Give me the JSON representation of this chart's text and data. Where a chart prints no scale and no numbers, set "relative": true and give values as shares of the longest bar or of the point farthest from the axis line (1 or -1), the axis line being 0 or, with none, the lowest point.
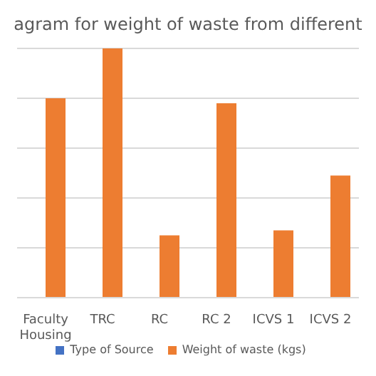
{
  "chart_data": {
    "type": "bar",
    "title": "agram for weight of waste from different",
    "categories": [
      "Faculty Housing",
      "TRC",
      "RC",
      "RC 2",
      "ICVS 1",
      "ICVS 2"
    ],
    "relative": true,
    "grid": "y",
    "legend": "bottom",
    "series": [
      {
        "name": "Type of Source",
        "color": "#4472c4",
        "values": [
          null,
          null,
          null,
          null,
          null,
          null
        ]
      },
      {
        "name": "Weight of waste (kgs)",
        "color": "#ed7d31",
        "values": [
          0.8,
          1,
          0.25,
          0.78,
          0.27,
          0.49
        ]
      }
    ]
  }
}
